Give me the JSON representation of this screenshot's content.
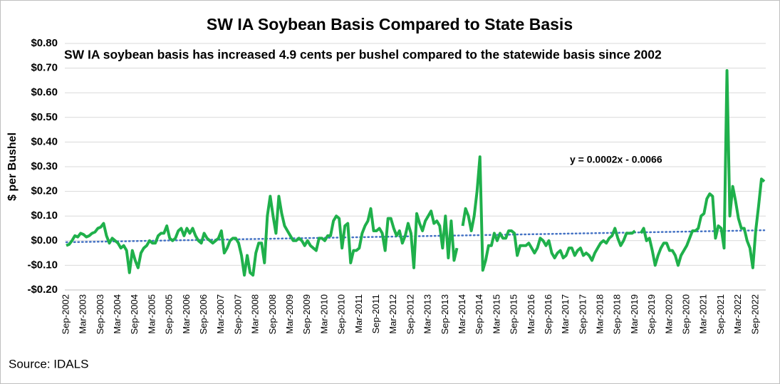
{
  "chart_data": {
    "type": "line",
    "title": "SW IA Soybean Basis Compared to State Basis",
    "subtitle": "SW IA soybean basis has increased 4.9 cents per bushel compared to the statewide basis since 2002",
    "y_label": "$ per Bushel",
    "annotation": "y = 0.0002x - 0.0066",
    "source": "Source: IDALS",
    "ylim": [
      -0.2,
      0.8
    ],
    "yticks": [
      {
        "value": -0.2,
        "label": "-$0.20"
      },
      {
        "value": -0.1,
        "label": "-$0.10"
      },
      {
        "value": 0,
        "label": "$0.00"
      },
      {
        "value": 0.1,
        "label": "$0.10"
      },
      {
        "value": 0.2,
        "label": "$0.20"
      },
      {
        "value": 0.3,
        "label": "$0.30"
      },
      {
        "value": 0.4,
        "label": "$0.40"
      },
      {
        "value": 0.5,
        "label": "$0.50"
      },
      {
        "value": 0.6,
        "label": "$0.60"
      },
      {
        "value": 0.7,
        "label": "$0.70"
      },
      {
        "value": 0.8,
        "label": "$0.80"
      }
    ],
    "grid": true,
    "categories": [
      "Sep-2002",
      null,
      null,
      null,
      null,
      null,
      "Mar-2003",
      null,
      null,
      null,
      null,
      null,
      "Sep-2003",
      null,
      null,
      null,
      null,
      null,
      "Mar-2004",
      null,
      null,
      null,
      null,
      null,
      "Sep-2004",
      null,
      null,
      null,
      null,
      null,
      "Mar-2005",
      null,
      null,
      null,
      null,
      null,
      "Sep-2005",
      null,
      null,
      null,
      null,
      null,
      "Mar-2006",
      null,
      null,
      null,
      null,
      null,
      "Sep-2006",
      null,
      null,
      null,
      null,
      null,
      "Mar-2007",
      null,
      null,
      null,
      null,
      null,
      "Sep-2007",
      null,
      null,
      null,
      null,
      null,
      "Mar-2008",
      null,
      null,
      null,
      null,
      null,
      "Sep-2008",
      null,
      null,
      null,
      null,
      null,
      "Mar-2009",
      null,
      null,
      null,
      null,
      null,
      "Sep-2009",
      null,
      null,
      null,
      null,
      null,
      "Mar-2010",
      null,
      null,
      null,
      null,
      null,
      "Sep-2010",
      null,
      null,
      null,
      null,
      null,
      "Mar-2011",
      null,
      null,
      null,
      null,
      null,
      "Sep-2011",
      null,
      null,
      null,
      null,
      null,
      "Mar-2012",
      null,
      null,
      null,
      null,
      null,
      "Sep-2012",
      null,
      null,
      null,
      null,
      null,
      "Mar-2013",
      null,
      null,
      null,
      null,
      null,
      "Sep-2013",
      null,
      null,
      null,
      null,
      null,
      "Mar-2014",
      null,
      null,
      null,
      null,
      null,
      "Sep-2014",
      null,
      null,
      null,
      null,
      null,
      "Mar-2015",
      null,
      null,
      null,
      null,
      null,
      "Sep-2015",
      null,
      null,
      null,
      null,
      null,
      "Mar-2016",
      null,
      null,
      null,
      null,
      null,
      "Sep-2016",
      null,
      null,
      null,
      null,
      null,
      "Mar-2017",
      null,
      null,
      null,
      null,
      null,
      "Sep-2017",
      null,
      null,
      null,
      null,
      null,
      "Mar-2018",
      null,
      null,
      null,
      null,
      null,
      "Sep-2018",
      null,
      null,
      null,
      null,
      null,
      "Mar-2019",
      null,
      null,
      null,
      null,
      null,
      "Sep-2019",
      null,
      null,
      null,
      null,
      null,
      "Mar-2020",
      null,
      null,
      null,
      null,
      null,
      "Sep-2020",
      null,
      null,
      null,
      null,
      null,
      "Mar-2021",
      null,
      null,
      null,
      null,
      null,
      "Sep-2021",
      null,
      null,
      null,
      null,
      null,
      "Mar-2022",
      null,
      null,
      null,
      null,
      null,
      "Sep-2022",
      null,
      null,
      null
    ],
    "series": [
      {
        "color": "#1fb04b",
        "values": [
          -0.02,
          -0.015,
          0.0,
          0.02,
          0.015,
          0.03,
          0.025,
          0.015,
          0.02,
          0.03,
          0.035,
          0.05,
          0.055,
          0.07,
          0.02,
          -0.01,
          0.01,
          0.0,
          -0.01,
          -0.03,
          -0.02,
          -0.04,
          -0.13,
          -0.04,
          -0.08,
          -0.11,
          -0.05,
          -0.03,
          -0.02,
          0.0,
          -0.01,
          -0.01,
          0.02,
          0.03,
          0.03,
          0.06,
          0.01,
          0.0,
          0.01,
          0.04,
          0.05,
          0.02,
          0.05,
          0.03,
          0.05,
          0.02,
          0.0,
          -0.01,
          0.03,
          0.01,
          0.0,
          -0.01,
          0.0,
          0.01,
          0.04,
          -0.05,
          -0.03,
          0.0,
          0.01,
          0.01,
          -0.01,
          -0.06,
          -0.14,
          -0.06,
          -0.13,
          -0.14,
          -0.05,
          -0.01,
          -0.01,
          -0.09,
          0.1,
          0.18,
          0.1,
          0.03,
          0.18,
          0.11,
          0.06,
          0.04,
          0.02,
          0.0,
          0.0,
          0.01,
          0.0,
          -0.02,
          0.0,
          -0.02,
          -0.03,
          -0.04,
          0.01,
          0.01,
          0.0,
          0.02,
          0.02,
          0.08,
          0.1,
          0.09,
          -0.03,
          0.06,
          0.07,
          -0.09,
          -0.04,
          -0.04,
          -0.03,
          0.03,
          0.06,
          0.08,
          0.13,
          0.04,
          0.04,
          0.05,
          0.03,
          -0.04,
          0.09,
          0.09,
          0.05,
          0.02,
          0.04,
          -0.01,
          0.02,
          0.07,
          0.03,
          -0.11,
          0.11,
          0.07,
          0.04,
          0.08,
          0.1,
          0.12,
          0.07,
          0.08,
          0.06,
          -0.03,
          0.1,
          -0.07,
          0.08,
          -0.08,
          -0.03,
          null,
          0.06,
          0.13,
          0.1,
          0.04,
          0.1,
          0.2,
          0.34,
          -0.12,
          -0.08,
          -0.02,
          -0.02,
          0.03,
          0.0,
          0.03,
          0.01,
          0.01,
          0.04,
          0.04,
          0.03,
          -0.06,
          -0.02,
          -0.02,
          -0.02,
          -0.01,
          -0.03,
          -0.05,
          -0.03,
          0.01,
          0.0,
          -0.02,
          0.0,
          -0.05,
          -0.07,
          -0.05,
          -0.04,
          -0.07,
          -0.06,
          -0.03,
          -0.03,
          -0.06,
          -0.04,
          -0.03,
          -0.06,
          -0.05,
          -0.06,
          -0.08,
          -0.05,
          -0.03,
          -0.01,
          0.0,
          -0.01,
          0.01,
          0.02,
          0.05,
          0.01,
          -0.02,
          0.0,
          0.03,
          0.03,
          0.03,
          0.04,
          null,
          0.03,
          0.05,
          0.0,
          0.01,
          -0.04,
          -0.1,
          -0.06,
          -0.03,
          -0.01,
          -0.01,
          -0.04,
          -0.04,
          -0.06,
          -0.1,
          -0.06,
          -0.04,
          -0.02,
          0.01,
          0.04,
          0.04,
          0.05,
          0.1,
          0.11,
          0.17,
          0.19,
          0.18,
          0.01,
          0.06,
          0.05,
          -0.03,
          0.69,
          0.1,
          0.22,
          0.16,
          0.09,
          0.05,
          0.05,
          0.0,
          -0.03,
          -0.11,
          0.04,
          0.14,
          0.25,
          0.24
        ]
      }
    ],
    "trendline": {
      "color": "#4472c4",
      "values": [
        -0.0064,
        0.0422
      ]
    }
  }
}
